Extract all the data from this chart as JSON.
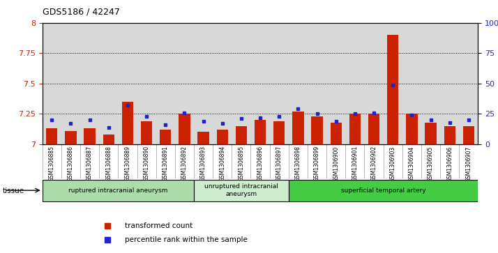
{
  "title": "GDS5186 / 42247",
  "samples": [
    "GSM1306885",
    "GSM1306886",
    "GSM1306887",
    "GSM1306888",
    "GSM1306889",
    "GSM1306890",
    "GSM1306891",
    "GSM1306892",
    "GSM1306893",
    "GSM1306894",
    "GSM1306895",
    "GSM1306896",
    "GSM1306897",
    "GSM1306898",
    "GSM1306899",
    "GSM1306900",
    "GSM1306901",
    "GSM1306902",
    "GSM1306903",
    "GSM1306904",
    "GSM1306905",
    "GSM1306906",
    "GSM1306907"
  ],
  "red_values": [
    7.13,
    7.11,
    7.13,
    7.08,
    7.35,
    7.19,
    7.12,
    7.25,
    7.1,
    7.12,
    7.15,
    7.2,
    7.19,
    7.27,
    7.23,
    7.18,
    7.25,
    7.25,
    7.9,
    7.25,
    7.18,
    7.15,
    7.15
  ],
  "blue_values": [
    20,
    17,
    20,
    14,
    32,
    23,
    16,
    26,
    19,
    17,
    21,
    22,
    23,
    29,
    25,
    19,
    25,
    26,
    49,
    24,
    20,
    18,
    20
  ],
  "ylim_left": [
    7.0,
    8.0
  ],
  "ylim_right": [
    0,
    100
  ],
  "yticks_left": [
    7.0,
    7.25,
    7.5,
    7.75,
    8.0
  ],
  "yticks_right": [
    0,
    25,
    50,
    75,
    100
  ],
  "grid_lines": [
    7.25,
    7.5,
    7.75
  ],
  "bar_color": "#cc2200",
  "dot_color": "#2222cc",
  "plot_bg_color": "#d8d8d8",
  "xlabel_bg_color": "#d0d0d0",
  "tissue_groups": [
    {
      "label": "ruptured intracranial aneurysm",
      "start": 0,
      "end": 8,
      "color": "#aaddaa"
    },
    {
      "label": "unruptured intracranial\naneurysm",
      "start": 8,
      "end": 13,
      "color": "#cceecc"
    },
    {
      "label": "superficial temporal artery",
      "start": 13,
      "end": 23,
      "color": "#44cc44"
    }
  ],
  "legend_items": [
    {
      "label": "transformed count",
      "color": "#cc2200"
    },
    {
      "label": "percentile rank within the sample",
      "color": "#2222cc"
    }
  ],
  "tissue_label": "tissue"
}
